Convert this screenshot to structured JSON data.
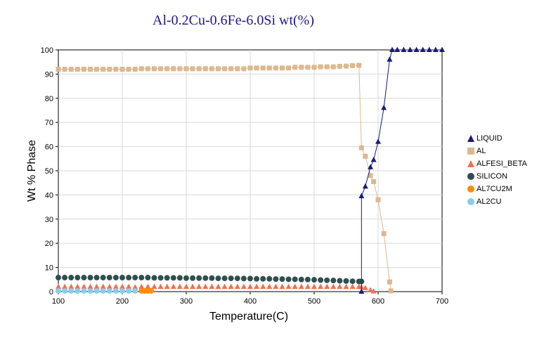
{
  "chart_data": {
    "type": "line",
    "title": "Al-0.2Cu-0.6Fe-6.0Si wt(%)",
    "xlabel": "Temperature(C)",
    "ylabel": "Wt % Phase",
    "xlim": [
      100,
      700
    ],
    "ylim": [
      0,
      100
    ],
    "xticks": [
      100,
      200,
      300,
      400,
      500,
      600,
      700
    ],
    "yticks": [
      0,
      10,
      20,
      30,
      40,
      50,
      60,
      70,
      80,
      90,
      100
    ],
    "grid": true,
    "legend_position": "right",
    "series": [
      {
        "name": "LIQUID",
        "color": "#1a1a7a",
        "marker": "triangle",
        "line": true,
        "x": [
          574,
          574,
          580,
          588,
          593,
          600,
          609,
          618,
          622,
          630,
          640,
          650,
          660,
          670,
          680,
          690,
          700
        ],
        "y": [
          0,
          39.5,
          43.5,
          51.5,
          54.5,
          62,
          76,
          96,
          100,
          100,
          100,
          100,
          100,
          100,
          100,
          100,
          100
        ]
      },
      {
        "name": "AL",
        "color": "#dcb890",
        "marker": "square",
        "line": true,
        "x": [
          100,
          110,
          120,
          130,
          140,
          150,
          160,
          170,
          180,
          190,
          200,
          210,
          220,
          230,
          240,
          250,
          260,
          270,
          280,
          290,
          300,
          310,
          320,
          330,
          340,
          350,
          360,
          370,
          380,
          390,
          400,
          410,
          420,
          430,
          440,
          450,
          460,
          470,
          480,
          490,
          500,
          510,
          520,
          530,
          540,
          550,
          560,
          570,
          574,
          580,
          588,
          593,
          600,
          609,
          618,
          620
        ],
        "y": [
          92,
          92,
          92,
          92,
          92,
          92,
          92,
          92,
          92,
          92,
          92,
          92,
          92,
          92.2,
          92.2,
          92.2,
          92.2,
          92.2,
          92.2,
          92.2,
          92.2,
          92.2,
          92.2,
          92.2,
          92.2,
          92.2,
          92.2,
          92.2,
          92.2,
          92.2,
          92.5,
          92.5,
          92.5,
          92.5,
          92.5,
          92.5,
          92.5,
          92.8,
          92.8,
          92.8,
          92.8,
          93,
          93,
          93,
          93.2,
          93.3,
          93.5,
          93.6,
          59.5,
          56,
          48,
          45.5,
          38,
          24,
          4,
          0.3
        ]
      },
      {
        "name": "ALFESI_BETA",
        "color": "#f07050",
        "marker": "triangle",
        "line": false,
        "x": [
          100,
          110,
          120,
          130,
          140,
          150,
          160,
          170,
          180,
          190,
          200,
          210,
          220,
          230,
          240,
          250,
          260,
          270,
          280,
          290,
          300,
          310,
          320,
          330,
          340,
          350,
          360,
          370,
          380,
          390,
          400,
          410,
          420,
          430,
          440,
          450,
          460,
          470,
          480,
          490,
          500,
          510,
          520,
          530,
          540,
          550,
          560,
          570,
          574,
          580,
          588,
          593
        ],
        "y": [
          2,
          2,
          2,
          2,
          2,
          2,
          2,
          2,
          2,
          2,
          2,
          2,
          1.8,
          2,
          2,
          2,
          2,
          2,
          2,
          2,
          2,
          2,
          2,
          2,
          2,
          2,
          2,
          2,
          2,
          2,
          2,
          2,
          2,
          2,
          2,
          2,
          2,
          2,
          2,
          2,
          2,
          2,
          2,
          2,
          2,
          2,
          2,
          2,
          1.8,
          1.5,
          0.6,
          0.1
        ]
      },
      {
        "name": "SILICON",
        "color": "#2f4f4f",
        "marker": "circle",
        "line": false,
        "x": [
          100,
          110,
          120,
          130,
          140,
          150,
          160,
          170,
          180,
          190,
          200,
          210,
          220,
          230,
          240,
          250,
          260,
          270,
          280,
          290,
          300,
          310,
          320,
          330,
          340,
          350,
          360,
          370,
          380,
          390,
          400,
          410,
          420,
          430,
          440,
          450,
          460,
          470,
          480,
          490,
          500,
          510,
          520,
          530,
          540,
          550,
          560,
          570,
          574
        ],
        "y": [
          5.8,
          5.8,
          5.8,
          5.8,
          5.8,
          5.8,
          5.8,
          5.8,
          5.8,
          5.8,
          5.8,
          5.8,
          5.8,
          5.8,
          5.8,
          5.7,
          5.7,
          5.7,
          5.7,
          5.7,
          5.6,
          5.6,
          5.6,
          5.6,
          5.6,
          5.5,
          5.5,
          5.5,
          5.5,
          5.4,
          5.4,
          5.3,
          5.3,
          5.3,
          5.2,
          5.2,
          5.1,
          5.1,
          5,
          5,
          4.9,
          4.8,
          4.7,
          4.6,
          4.5,
          4.4,
          4.3,
          4.2,
          4.2
        ]
      },
      {
        "name": "AL7CU2M",
        "color": "#ff8c00",
        "marker": "circle",
        "line": false,
        "x": [
          230,
          235,
          240,
          245
        ],
        "y": [
          0.3,
          0.3,
          0.3,
          0.3
        ]
      },
      {
        "name": "AL2CU",
        "color": "#87ceeb",
        "marker": "circle",
        "line": false,
        "x": [
          100,
          110,
          120,
          130,
          140,
          150,
          160,
          170,
          180,
          190,
          200,
          210,
          220
        ],
        "y": [
          0.3,
          0.3,
          0.3,
          0.3,
          0.3,
          0.3,
          0.3,
          0.3,
          0.3,
          0.3,
          0.3,
          0.3,
          0.3
        ]
      }
    ]
  }
}
